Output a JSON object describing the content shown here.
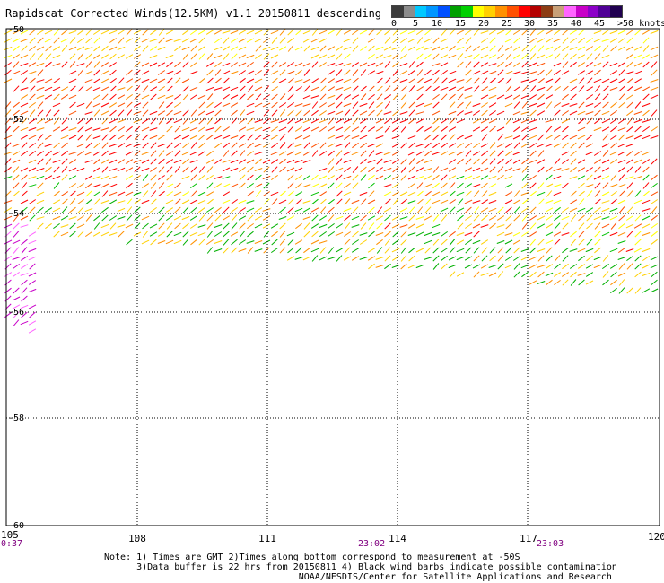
{
  "title": "Rapidscat Corrected Winds(12.5KM) v1.1 20150811 descending",
  "scale": {
    "colors": [
      "#3c3c3c",
      "#8c8c8c",
      "#00c8ff",
      "#0096ff",
      "#0050ff",
      "#00a000",
      "#00d000",
      "#ffff00",
      "#ffd000",
      "#ff9000",
      "#ff5000",
      "#ff0000",
      "#b40000",
      "#8c3c14",
      "#c8a078",
      "#ff64ff",
      "#c800c8",
      "#8c00c8",
      "#500096",
      "#200050"
    ],
    "labels": [
      "0",
      "5",
      "10",
      "15",
      "20",
      "25",
      "30",
      "35",
      "40",
      "45",
      ">50 knots"
    ]
  },
  "axes": {
    "lat_labels": [
      "-50",
      "-52",
      "-54",
      "-56",
      "-58",
      "-60"
    ],
    "lon_labels": [
      "105",
      "108",
      "111",
      "114",
      "117",
      "120"
    ]
  },
  "times": [
    "0:37",
    "23:02",
    "23:03"
  ],
  "notes": [
    "Note: 1) Times are GMT 2)Times along bottom correspond to measurement at -50S",
    "      3)Data buffer is 22 hrs from 20150811 4) Black wind barbs indicate possible contamination",
    "                                    NOAA/NESDIS/Center for Satellite Applications and Research"
  ]
}
